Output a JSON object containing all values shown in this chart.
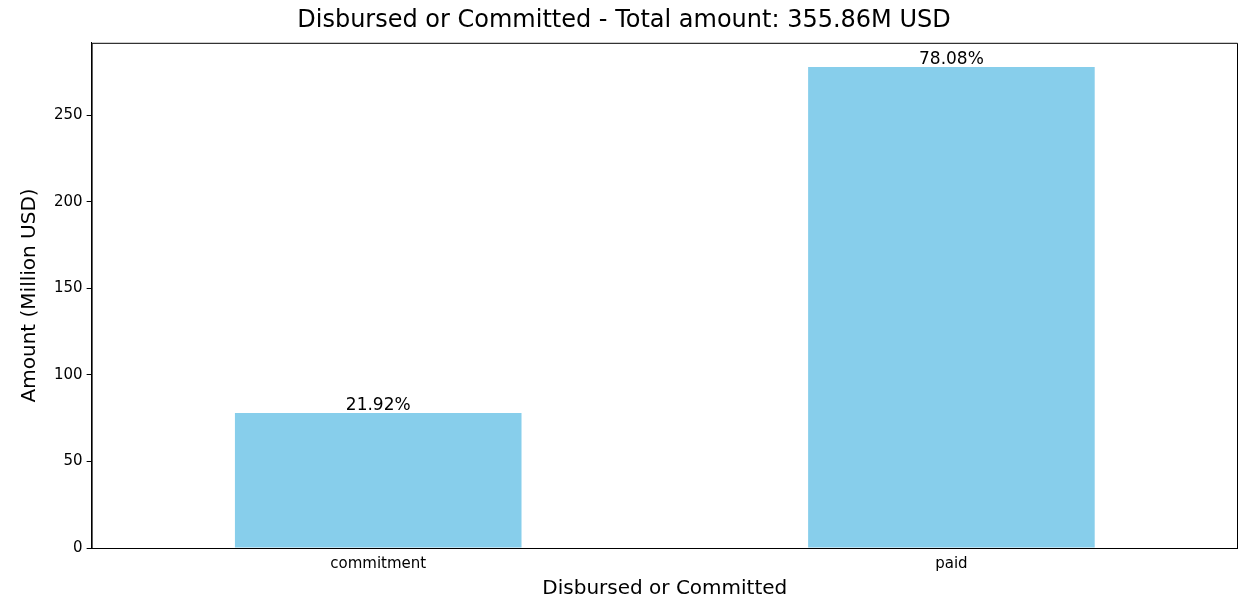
{
  "chart_data": {
    "type": "bar",
    "title": "Disbursed or Committed - Total amount: 355.86M USD",
    "xlabel": "Disbursed or Committed",
    "ylabel": "Amount (Million USD)",
    "categories": [
      "commitment",
      "paid"
    ],
    "values": [
      78,
      278
    ],
    "annotations": [
      {
        "text": "21.92%",
        "x": "commitment",
        "y": 78
      },
      {
        "text": "78.08%",
        "x": "paid",
        "y": 278
      }
    ],
    "color": "#87ceeb",
    "ylim": [
      0,
      292
    ],
    "yticks": [
      0,
      50,
      100,
      150,
      200,
      250
    ],
    "grid": false,
    "legend": false
  }
}
